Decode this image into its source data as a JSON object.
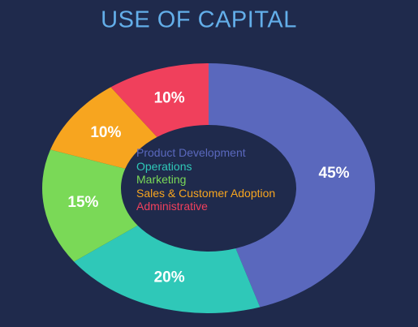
{
  "chart_data": {
    "type": "donut",
    "title": "USE OF CAPITAL",
    "categories": [
      "Product Development",
      "Operations",
      "Marketing",
      "Sales & Customer Adoption",
      "Administrative"
    ],
    "values": [
      45,
      20,
      15,
      10,
      10
    ],
    "value_labels": [
      "45%",
      "20%",
      "15%",
      "10%",
      "10%"
    ],
    "colors": [
      "#5a68bd",
      "#2fc8b8",
      "#7ad957",
      "#f7a51f",
      "#f0405c"
    ]
  }
}
